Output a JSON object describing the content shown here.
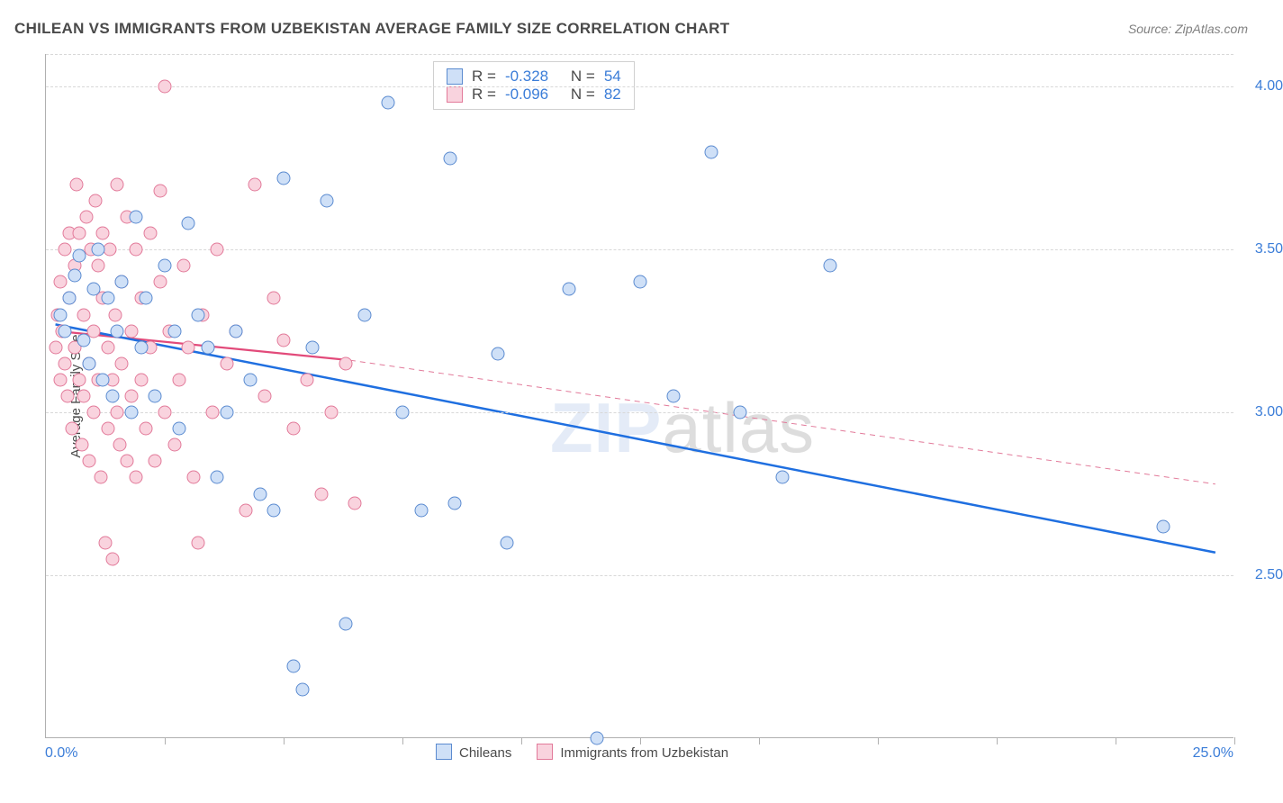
{
  "title": "CHILEAN VS IMMIGRANTS FROM UZBEKISTAN AVERAGE FAMILY SIZE CORRELATION CHART",
  "source": "Source: ZipAtlas.com",
  "watermark_zip": "ZIP",
  "watermark_atlas": "atlas",
  "chart": {
    "type": "scatter",
    "xlim": [
      0,
      25
    ],
    "ylim": [
      2.0,
      4.1
    ],
    "xlabel_min": "0.0%",
    "xlabel_max": "25.0%",
    "ylabel": "Average Family Size",
    "ytick_values": [
      2.5,
      3.0,
      3.5,
      4.0
    ],
    "ytick_labels": [
      "2.50",
      "3.00",
      "3.50",
      "4.00"
    ],
    "x_ticks": [
      2.5,
      5.0,
      7.5,
      10.0,
      12.5,
      15.0,
      17.5,
      20.0,
      22.5,
      25.0
    ],
    "grid_color": "#d8d8d8",
    "background_color": "#ffffff",
    "axis_color": "#b0b0b0",
    "tick_label_color": "#3b7dd8",
    "point_radius": 7.5,
    "series": {
      "chileans": {
        "label": "Chileans",
        "R": "-0.328",
        "N": "54",
        "fill": "#cfe0f7",
        "stroke": "#5b8bd0",
        "trend": {
          "x1": 0.2,
          "y1": 3.27,
          "x2": 24.6,
          "y2": 2.57,
          "color": "#1f6fe0",
          "width": 2.5,
          "dash": "none"
        },
        "trend_ext": null,
        "points": [
          [
            0.3,
            3.3
          ],
          [
            0.4,
            3.25
          ],
          [
            0.5,
            3.35
          ],
          [
            0.6,
            3.42
          ],
          [
            0.7,
            3.48
          ],
          [
            0.8,
            3.22
          ],
          [
            1.0,
            3.38
          ],
          [
            1.1,
            3.5
          ],
          [
            1.2,
            3.1
          ],
          [
            1.3,
            3.35
          ],
          [
            1.5,
            3.25
          ],
          [
            1.6,
            3.4
          ],
          [
            1.8,
            3.0
          ],
          [
            1.9,
            3.6
          ],
          [
            2.0,
            3.2
          ],
          [
            2.1,
            3.35
          ],
          [
            2.3,
            3.05
          ],
          [
            2.5,
            3.45
          ],
          [
            2.7,
            3.25
          ],
          [
            2.8,
            2.95
          ],
          [
            3.0,
            3.58
          ],
          [
            3.2,
            3.3
          ],
          [
            3.4,
            3.2
          ],
          [
            3.6,
            2.8
          ],
          [
            3.8,
            3.0
          ],
          [
            4.0,
            3.25
          ],
          [
            4.3,
            3.1
          ],
          [
            4.5,
            2.75
          ],
          [
            4.8,
            2.7
          ],
          [
            5.0,
            3.72
          ],
          [
            5.2,
            2.22
          ],
          [
            5.4,
            2.15
          ],
          [
            5.6,
            3.2
          ],
          [
            5.9,
            3.65
          ],
          [
            6.3,
            2.35
          ],
          [
            6.7,
            3.3
          ],
          [
            7.2,
            3.95
          ],
          [
            7.5,
            3.0
          ],
          [
            7.9,
            2.7
          ],
          [
            8.5,
            3.78
          ],
          [
            8.6,
            2.72
          ],
          [
            9.5,
            3.18
          ],
          [
            9.7,
            2.6
          ],
          [
            11.0,
            3.38
          ],
          [
            11.6,
            2.0
          ],
          [
            12.5,
            3.4
          ],
          [
            13.2,
            3.05
          ],
          [
            14.0,
            3.8
          ],
          [
            14.6,
            3.0
          ],
          [
            15.5,
            2.8
          ],
          [
            16.5,
            3.45
          ],
          [
            23.5,
            2.65
          ],
          [
            0.9,
            3.15
          ],
          [
            1.4,
            3.05
          ]
        ]
      },
      "uzbekistan": {
        "label": "Immigrants from Uzbekistan",
        "R": "-0.096",
        "N": "82",
        "fill": "#f9d3de",
        "stroke": "#e27a9a",
        "trend": {
          "x1": 0.2,
          "y1": 3.25,
          "x2": 6.4,
          "y2": 3.16,
          "color": "#e24a7a",
          "width": 2.2,
          "dash": "none"
        },
        "trend_ext": {
          "x1": 6.4,
          "y1": 3.16,
          "x2": 24.6,
          "y2": 2.78,
          "color": "#e27a9a",
          "width": 1,
          "dash": "6,5"
        },
        "points": [
          [
            0.2,
            3.2
          ],
          [
            0.25,
            3.3
          ],
          [
            0.3,
            3.1
          ],
          [
            0.3,
            3.4
          ],
          [
            0.35,
            3.25
          ],
          [
            0.4,
            3.5
          ],
          [
            0.4,
            3.15
          ],
          [
            0.45,
            3.05
          ],
          [
            0.5,
            3.35
          ],
          [
            0.5,
            3.55
          ],
          [
            0.55,
            2.95
          ],
          [
            0.6,
            3.45
          ],
          [
            0.6,
            3.2
          ],
          [
            0.65,
            3.7
          ],
          [
            0.7,
            3.1
          ],
          [
            0.7,
            3.55
          ],
          [
            0.75,
            2.9
          ],
          [
            0.8,
            3.3
          ],
          [
            0.8,
            3.05
          ],
          [
            0.85,
            3.6
          ],
          [
            0.9,
            3.15
          ],
          [
            0.9,
            2.85
          ],
          [
            0.95,
            3.5
          ],
          [
            1.0,
            3.25
          ],
          [
            1.0,
            3.0
          ],
          [
            1.05,
            3.65
          ],
          [
            1.1,
            3.1
          ],
          [
            1.1,
            3.45
          ],
          [
            1.15,
            2.8
          ],
          [
            1.2,
            3.35
          ],
          [
            1.2,
            3.55
          ],
          [
            1.25,
            2.6
          ],
          [
            1.3,
            3.2
          ],
          [
            1.3,
            2.95
          ],
          [
            1.35,
            3.5
          ],
          [
            1.4,
            3.1
          ],
          [
            1.4,
            2.55
          ],
          [
            1.45,
            3.3
          ],
          [
            1.5,
            3.7
          ],
          [
            1.5,
            3.0
          ],
          [
            1.55,
            2.9
          ],
          [
            1.6,
            3.4
          ],
          [
            1.6,
            3.15
          ],
          [
            1.7,
            2.85
          ],
          [
            1.7,
            3.6
          ],
          [
            1.8,
            3.25
          ],
          [
            1.8,
            3.05
          ],
          [
            1.9,
            3.5
          ],
          [
            1.9,
            2.8
          ],
          [
            2.0,
            3.35
          ],
          [
            2.0,
            3.1
          ],
          [
            2.1,
            2.95
          ],
          [
            2.2,
            3.55
          ],
          [
            2.2,
            3.2
          ],
          [
            2.3,
            2.85
          ],
          [
            2.4,
            3.4
          ],
          [
            2.4,
            3.68
          ],
          [
            2.5,
            3.0
          ],
          [
            2.5,
            4.0
          ],
          [
            2.6,
            3.25
          ],
          [
            2.7,
            2.9
          ],
          [
            2.8,
            3.1
          ],
          [
            2.9,
            3.45
          ],
          [
            3.0,
            3.2
          ],
          [
            3.1,
            2.8
          ],
          [
            3.2,
            2.6
          ],
          [
            3.3,
            3.3
          ],
          [
            3.5,
            3.0
          ],
          [
            3.6,
            3.5
          ],
          [
            3.8,
            3.15
          ],
          [
            4.0,
            3.25
          ],
          [
            4.2,
            2.7
          ],
          [
            4.4,
            3.7
          ],
          [
            4.6,
            3.05
          ],
          [
            4.8,
            3.35
          ],
          [
            5.0,
            3.22
          ],
          [
            5.2,
            2.95
          ],
          [
            5.5,
            3.1
          ],
          [
            5.8,
            2.75
          ],
          [
            6.0,
            3.0
          ],
          [
            6.3,
            3.15
          ],
          [
            6.5,
            2.72
          ]
        ]
      }
    }
  },
  "legend_top": {
    "R_label": "R =",
    "N_label": "N ="
  }
}
